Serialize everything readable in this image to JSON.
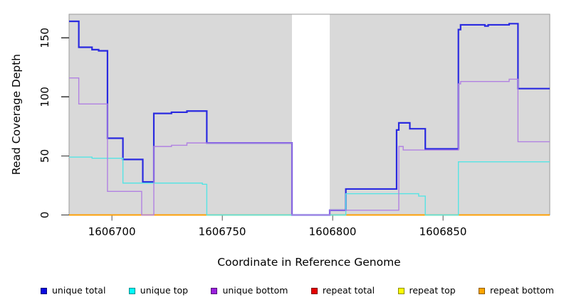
{
  "chart_data": {
    "type": "line",
    "subtype": "step",
    "title": "",
    "xlabel": "Coordinate in Reference Genome",
    "ylabel": "Read Coverage Depth",
    "x_domain": [
      1606680.6,
      1606898.4
    ],
    "y_domain": [
      0,
      170
    ],
    "x_ticks": [
      1606700,
      1606750,
      1606800,
      1606850
    ],
    "y_ticks": [
      0,
      50,
      100,
      150
    ],
    "grid": false,
    "outer_bg": "#ffffff",
    "covered_color": "#d9d9d9",
    "border_color": "#999999",
    "covered_regions": [
      [
        1606680.6,
        1606781.6
      ],
      [
        1606798.7,
        1606898.4
      ]
    ],
    "gap_region": [
      1606781.6,
      1606798.7
    ],
    "series": [
      {
        "name": "repeat total",
        "group": "repeat",
        "color": "#e60000",
        "width": 1.4,
        "steps": [
          [
            1606680.6,
            0
          ]
        ]
      },
      {
        "name": "repeat top",
        "group": "repeat",
        "color": "#ffff00",
        "width": 1.4,
        "steps": [
          [
            1606680.6,
            0
          ]
        ]
      },
      {
        "name": "repeat bottom",
        "group": "repeat",
        "color": "#ff9d00",
        "width": 1.8,
        "steps": [
          [
            1606680.6,
            0
          ]
        ]
      },
      {
        "name": "unique total",
        "group": "unique",
        "color": "#2a2ae0",
        "width": 2.2,
        "steps": [
          [
            1606680.6,
            164
          ],
          [
            1606685,
            142
          ],
          [
            1606691,
            140
          ],
          [
            1606694,
            139
          ],
          [
            1606698,
            65
          ],
          [
            1606705,
            47
          ],
          [
            1606714,
            28
          ],
          [
            1606719,
            86
          ],
          [
            1606727,
            87
          ],
          [
            1606734,
            88
          ],
          [
            1606743,
            61
          ],
          [
            1606781.6,
            0
          ],
          [
            1606798.7,
            4
          ],
          [
            1606806,
            22
          ],
          [
            1606829,
            72
          ],
          [
            1606830,
            78
          ],
          [
            1606835,
            73
          ],
          [
            1606842,
            56
          ],
          [
            1606857,
            157
          ],
          [
            1606858,
            161
          ],
          [
            1606869,
            160
          ],
          [
            1606870.5,
            161
          ],
          [
            1606880,
            162
          ],
          [
            1606884,
            107
          ]
        ]
      },
      {
        "name": "unique top",
        "group": "unique",
        "color": "#55e4e4",
        "width": 1.4,
        "steps": [
          [
            1606680.6,
            49
          ],
          [
            1606691,
            48
          ],
          [
            1606705,
            27
          ],
          [
            1606741,
            26
          ],
          [
            1606743,
            0
          ],
          [
            1606806,
            18
          ],
          [
            1606839,
            16
          ],
          [
            1606842,
            0
          ],
          [
            1606857,
            45
          ]
        ]
      },
      {
        "name": "unique bottom",
        "group": "unique",
        "color": "#b181e2",
        "width": 1.4,
        "steps": [
          [
            1606680.6,
            116
          ],
          [
            1606685,
            94
          ],
          [
            1606698,
            20
          ],
          [
            1606713.5,
            0
          ],
          [
            1606719,
            58
          ],
          [
            1606727,
            59
          ],
          [
            1606734,
            61
          ],
          [
            1606781.6,
            0
          ],
          [
            1606798.7,
            4
          ],
          [
            1606830,
            58
          ],
          [
            1606832,
            55
          ],
          [
            1606857,
            111
          ],
          [
            1606858,
            113
          ],
          [
            1606880,
            115
          ],
          [
            1606884,
            62
          ]
        ]
      }
    ],
    "overlap_segments": [
      {
        "from": 1606743,
        "to": 1606781.6,
        "value": 0,
        "color": "#8fd48f"
      },
      {
        "from": 1606798.7,
        "to": 1606806,
        "value": 0,
        "color": "#8fd48f"
      },
      {
        "from": 1606842,
        "to": 1606857,
        "value": 0,
        "color": "#8fd48f"
      }
    ],
    "axis": {
      "x_tick_color": "#8c8c8c",
      "y_tick_color": "#333333",
      "tick_label_size": 15
    },
    "legend": {
      "position": "bottom",
      "items": [
        {
          "label": "unique total",
          "color": "#0a0ae0"
        },
        {
          "label": "unique top",
          "color": "#00ffff"
        },
        {
          "label": "unique bottom",
          "color": "#9a20dc"
        },
        {
          "label": "repeat total",
          "color": "#e60000"
        },
        {
          "label": "repeat top",
          "color": "#ffff00"
        },
        {
          "label": "repeat bottom",
          "color": "#ffa500"
        }
      ]
    }
  }
}
